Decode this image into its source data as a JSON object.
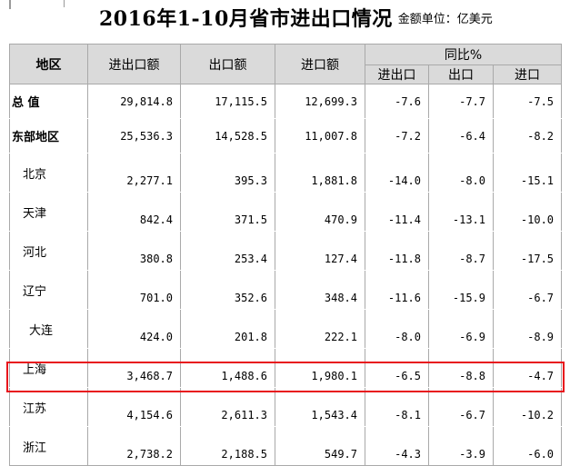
{
  "title": "2016年1-10月省市进出口情况",
  "unit": "金额单位：亿美元",
  "headers": {
    "region": "地区",
    "total_trade": "进出口额",
    "exports": "出口额",
    "imports": "进口额",
    "yoy": "同比%",
    "yoy_total": "进出口",
    "yoy_exports": "出口",
    "yoy_imports": "进口"
  },
  "rows": [
    {
      "region": "总  值",
      "total": "29,814.8",
      "exports": "17,115.5",
      "imports": "12,699.3",
      "yoy_total": "-7.6",
      "yoy_exports": "-7.7",
      "yoy_imports": "-7.5"
    },
    {
      "region": "东部地区",
      "total": "25,536.3",
      "exports": "14,528.5",
      "imports": "11,007.8",
      "yoy_total": "-7.2",
      "yoy_exports": "-6.4",
      "yoy_imports": "-8.2"
    },
    {
      "region": "北京",
      "total": "2,277.1",
      "exports": "395.3",
      "imports": "1,881.8",
      "yoy_total": "-14.0",
      "yoy_exports": "-8.0",
      "yoy_imports": "-15.1"
    },
    {
      "region": "天津",
      "total": "842.4",
      "exports": "371.5",
      "imports": "470.9",
      "yoy_total": "-11.4",
      "yoy_exports": "-13.1",
      "yoy_imports": "-10.0"
    },
    {
      "region": "河北",
      "total": "380.8",
      "exports": "253.4",
      "imports": "127.4",
      "yoy_total": "-11.8",
      "yoy_exports": "-8.7",
      "yoy_imports": "-17.5"
    },
    {
      "region": "辽宁",
      "total": "701.0",
      "exports": "352.6",
      "imports": "348.4",
      "yoy_total": "-11.6",
      "yoy_exports": "-15.9",
      "yoy_imports": "-6.7"
    },
    {
      "region": "大连",
      "total": "424.0",
      "exports": "201.8",
      "imports": "222.1",
      "yoy_total": "-8.0",
      "yoy_exports": "-6.9",
      "yoy_imports": "-8.9"
    },
    {
      "region": "上海",
      "total": "3,468.7",
      "exports": "1,488.6",
      "imports": "1,980.1",
      "yoy_total": "-6.5",
      "yoy_exports": "-8.8",
      "yoy_imports": "-4.7"
    },
    {
      "region": "江苏",
      "total": "4,154.6",
      "exports": "2,611.3",
      "imports": "1,543.4",
      "yoy_total": "-8.1",
      "yoy_exports": "-6.7",
      "yoy_imports": "-10.2"
    },
    {
      "region": "浙江",
      "total": "2,738.2",
      "exports": "2,188.5",
      "imports": "549.7",
      "yoy_total": "-4.3",
      "yoy_exports": "-3.9",
      "yoy_imports": "-6.0"
    }
  ],
  "highlight_color": "#e8141c"
}
